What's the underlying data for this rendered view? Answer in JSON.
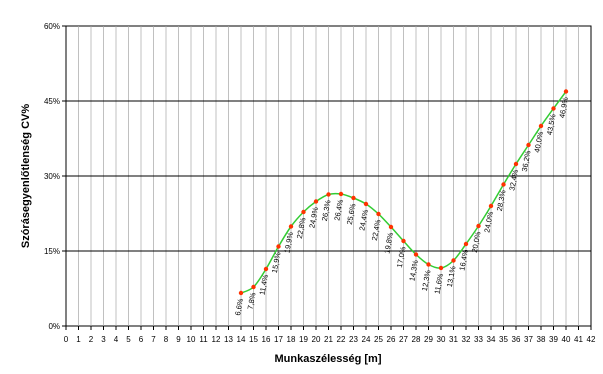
{
  "chart_data": {
    "type": "line",
    "xlabel": "Munkaszélesség [m]",
    "ylabel": "Szórásegyenlőtlenség CV%",
    "xlim": [
      0,
      42
    ],
    "ylim": [
      0,
      60
    ],
    "x_ticks": [
      0,
      1,
      2,
      3,
      4,
      5,
      6,
      7,
      8,
      9,
      10,
      11,
      12,
      13,
      14,
      15,
      16,
      17,
      18,
      19,
      20,
      21,
      22,
      23,
      24,
      25,
      26,
      27,
      28,
      29,
      30,
      31,
      32,
      33,
      34,
      35,
      36,
      37,
      38,
      39,
      40,
      41,
      42
    ],
    "y_ticks": [
      {
        "value": 0,
        "label": "0%"
      },
      {
        "value": 15,
        "label": "15%"
      },
      {
        "value": 30,
        "label": "30%"
      },
      {
        "value": 45,
        "label": "45%"
      },
      {
        "value": 60,
        "label": "60%"
      }
    ],
    "grid": {
      "vertical": true,
      "horizontal": true
    },
    "line_color": "#33cc33",
    "marker_color": "#ff3300",
    "series": [
      {
        "points": [
          {
            "x": 14,
            "y": 6.6,
            "label": "6,6%"
          },
          {
            "x": 15,
            "y": 7.8,
            "label": "7,8%"
          },
          {
            "x": 16,
            "y": 11.4,
            "label": "11,4%"
          },
          {
            "x": 17,
            "y": 15.9,
            "label": "15,9%"
          },
          {
            "x": 18,
            "y": 19.9,
            "label": "19,9%"
          },
          {
            "x": 19,
            "y": 22.8,
            "label": "22,8%"
          },
          {
            "x": 20,
            "y": 24.9,
            "label": "24,9%"
          },
          {
            "x": 21,
            "y": 26.3,
            "label": "26,3%"
          },
          {
            "x": 22,
            "y": 26.4,
            "label": "26,4%"
          },
          {
            "x": 23,
            "y": 25.6,
            "label": "25,6%"
          },
          {
            "x": 24,
            "y": 24.4,
            "label": "24,4%"
          },
          {
            "x": 25,
            "y": 22.4,
            "label": "22,4%"
          },
          {
            "x": 26,
            "y": 19.8,
            "label": "19,8%"
          },
          {
            "x": 27,
            "y": 17.0,
            "label": "17,0%"
          },
          {
            "x": 28,
            "y": 14.3,
            "label": "14,3%"
          },
          {
            "x": 29,
            "y": 12.3,
            "label": "12,3%"
          },
          {
            "x": 30,
            "y": 11.6,
            "label": "11,6%"
          },
          {
            "x": 31,
            "y": 13.1,
            "label": "13,1%"
          },
          {
            "x": 32,
            "y": 16.4,
            "label": "16,4%"
          },
          {
            "x": 33,
            "y": 20.0,
            "label": "20,0%"
          },
          {
            "x": 34,
            "y": 24.0,
            "label": "24,0%"
          },
          {
            "x": 35,
            "y": 28.3,
            "label": "28,3%"
          },
          {
            "x": 36,
            "y": 32.4,
            "label": "32,4%"
          },
          {
            "x": 37,
            "y": 36.2,
            "label": "36,2%"
          },
          {
            "x": 38,
            "y": 40.0,
            "label": "40,0%"
          },
          {
            "x": 39,
            "y": 43.5,
            "label": "43,5%"
          },
          {
            "x": 40,
            "y": 46.9,
            "label": "46,9%"
          }
        ]
      }
    ]
  }
}
